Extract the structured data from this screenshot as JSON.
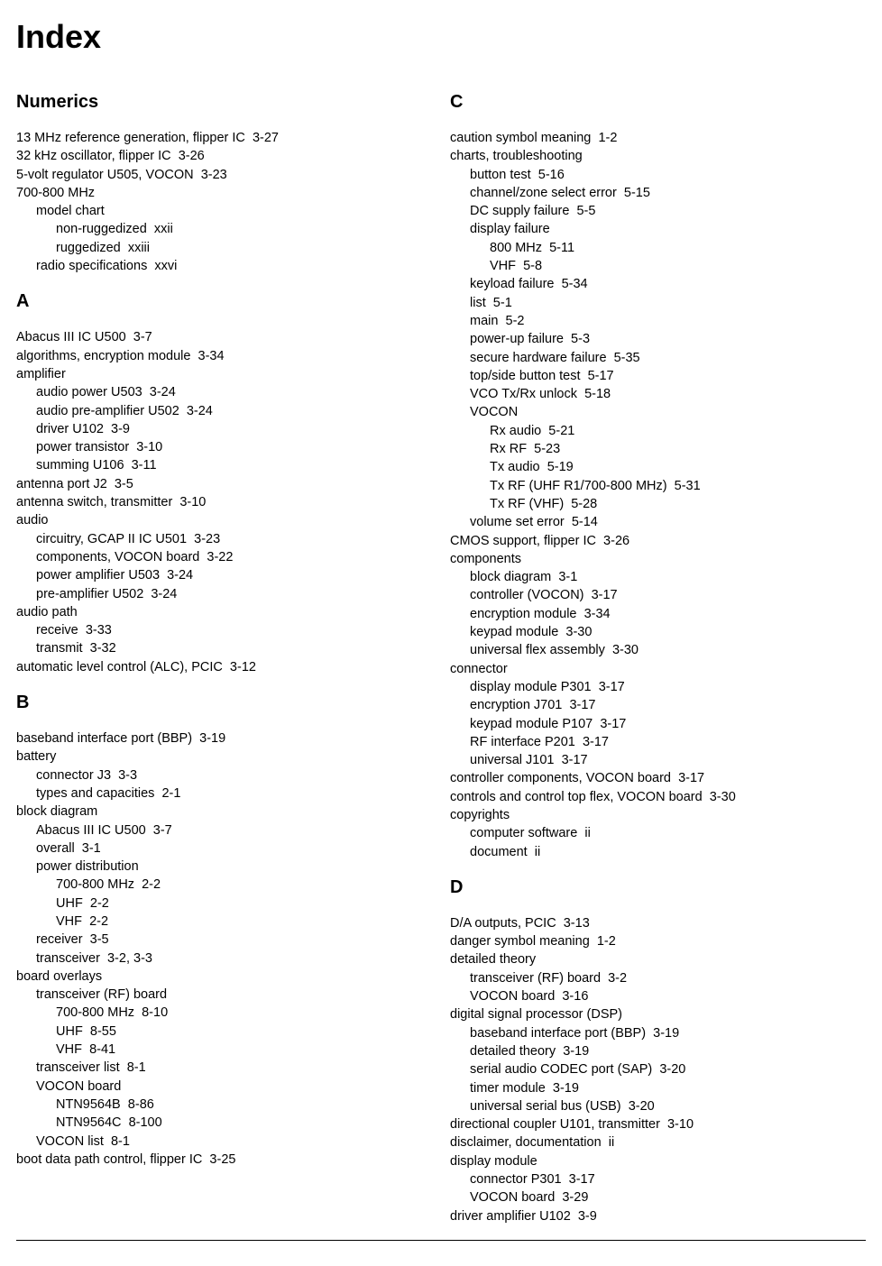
{
  "title": "Index",
  "left": {
    "sections": [
      {
        "heading": "Numerics",
        "entries": [
          {
            "lvl": 0,
            "text": "13 MHz reference generation, flipper IC",
            "ref": "3-27"
          },
          {
            "lvl": 0,
            "text": "32 kHz oscillator, flipper IC",
            "ref": "3-26"
          },
          {
            "lvl": 0,
            "text": "5-volt regulator U505, VOCON",
            "ref": "3-23"
          },
          {
            "lvl": 0,
            "text": "700-800 MHz",
            "ref": ""
          },
          {
            "lvl": 1,
            "text": "model chart",
            "ref": ""
          },
          {
            "lvl": 2,
            "text": "non-ruggedized",
            "ref": "xxii"
          },
          {
            "lvl": 2,
            "text": "ruggedized",
            "ref": "xxiii"
          },
          {
            "lvl": 1,
            "text": "radio specifications",
            "ref": "xxvi"
          }
        ]
      },
      {
        "heading": "A",
        "entries": [
          {
            "lvl": 0,
            "text": "Abacus III IC U500",
            "ref": "3-7"
          },
          {
            "lvl": 0,
            "text": "algorithms, encryption module",
            "ref": "3-34"
          },
          {
            "lvl": 0,
            "text": "amplifier",
            "ref": ""
          },
          {
            "lvl": 1,
            "text": "audio power U503",
            "ref": "3-24"
          },
          {
            "lvl": 1,
            "text": "audio pre-amplifier U502",
            "ref": "3-24"
          },
          {
            "lvl": 1,
            "text": "driver U102",
            "ref": "3-9"
          },
          {
            "lvl": 1,
            "text": "power transistor",
            "ref": "3-10"
          },
          {
            "lvl": 1,
            "text": "summing U106",
            "ref": "3-11"
          },
          {
            "lvl": 0,
            "text": "antenna port J2",
            "ref": "3-5"
          },
          {
            "lvl": 0,
            "text": "antenna switch, transmitter",
            "ref": "3-10"
          },
          {
            "lvl": 0,
            "text": "audio",
            "ref": ""
          },
          {
            "lvl": 1,
            "text": "circuitry, GCAP II IC U501",
            "ref": "3-23"
          },
          {
            "lvl": 1,
            "text": "components, VOCON board",
            "ref": "3-22"
          },
          {
            "lvl": 1,
            "text": "power amplifier U503",
            "ref": "3-24"
          },
          {
            "lvl": 1,
            "text": "pre-amplifier U502",
            "ref": "3-24"
          },
          {
            "lvl": 0,
            "text": "audio path",
            "ref": ""
          },
          {
            "lvl": 1,
            "text": "receive",
            "ref": "3-33"
          },
          {
            "lvl": 1,
            "text": "transmit",
            "ref": "3-32"
          },
          {
            "lvl": 0,
            "text": "automatic level control (ALC), PCIC",
            "ref": "3-12"
          }
        ]
      },
      {
        "heading": "B",
        "entries": [
          {
            "lvl": 0,
            "text": "baseband interface port (BBP)",
            "ref": "3-19"
          },
          {
            "lvl": 0,
            "text": "battery",
            "ref": ""
          },
          {
            "lvl": 1,
            "text": "connector J3",
            "ref": "3-3"
          },
          {
            "lvl": 1,
            "text": "types and capacities",
            "ref": "2-1"
          },
          {
            "lvl": 0,
            "text": "block diagram",
            "ref": ""
          },
          {
            "lvl": 1,
            "text": "Abacus III IC U500",
            "ref": "3-7"
          },
          {
            "lvl": 1,
            "text": "overall",
            "ref": "3-1"
          },
          {
            "lvl": 1,
            "text": "power distribution",
            "ref": ""
          },
          {
            "lvl": 2,
            "text": "700-800 MHz",
            "ref": "2-2"
          },
          {
            "lvl": 2,
            "text": "UHF",
            "ref": "2-2"
          },
          {
            "lvl": 2,
            "text": "VHF",
            "ref": "2-2"
          },
          {
            "lvl": 1,
            "text": "receiver",
            "ref": "3-5"
          },
          {
            "lvl": 1,
            "text": "transceiver",
            "ref": "3-2, 3-3"
          },
          {
            "lvl": 0,
            "text": "board overlays",
            "ref": ""
          },
          {
            "lvl": 1,
            "text": "transceiver (RF) board",
            "ref": ""
          },
          {
            "lvl": 2,
            "text": "700-800 MHz",
            "ref": "8-10"
          },
          {
            "lvl": 2,
            "text": "UHF",
            "ref": "8-55"
          },
          {
            "lvl": 2,
            "text": "VHF",
            "ref": "8-41"
          },
          {
            "lvl": 1,
            "text": "transceiver list",
            "ref": "8-1"
          },
          {
            "lvl": 1,
            "text": "VOCON board",
            "ref": ""
          },
          {
            "lvl": 2,
            "text": "NTN9564B",
            "ref": "8-86"
          },
          {
            "lvl": 2,
            "text": "NTN9564C",
            "ref": "8-100"
          },
          {
            "lvl": 1,
            "text": "VOCON list",
            "ref": "8-1"
          },
          {
            "lvl": 0,
            "text": "boot data path control, flipper IC",
            "ref": "3-25"
          }
        ]
      }
    ]
  },
  "right": {
    "sections": [
      {
        "heading": "C",
        "entries": [
          {
            "lvl": 0,
            "text": "caution symbol meaning",
            "ref": "1-2"
          },
          {
            "lvl": 0,
            "text": "charts, troubleshooting",
            "ref": ""
          },
          {
            "lvl": 1,
            "text": "button test",
            "ref": "5-16"
          },
          {
            "lvl": 1,
            "text": "channel/zone select error",
            "ref": "5-15"
          },
          {
            "lvl": 1,
            "text": "DC supply failure",
            "ref": "5-5"
          },
          {
            "lvl": 1,
            "text": "display failure",
            "ref": ""
          },
          {
            "lvl": 2,
            "text": "800 MHz",
            "ref": "5-11"
          },
          {
            "lvl": 2,
            "text": "VHF",
            "ref": "5-8"
          },
          {
            "lvl": 1,
            "text": "keyload failure",
            "ref": "5-34"
          },
          {
            "lvl": 1,
            "text": "list",
            "ref": "5-1"
          },
          {
            "lvl": 1,
            "text": "main",
            "ref": "5-2"
          },
          {
            "lvl": 1,
            "text": "power-up failure",
            "ref": "5-3"
          },
          {
            "lvl": 1,
            "text": "secure hardware failure",
            "ref": "5-35"
          },
          {
            "lvl": 1,
            "text": "top/side button test",
            "ref": "5-17"
          },
          {
            "lvl": 1,
            "text": "VCO Tx/Rx unlock",
            "ref": "5-18"
          },
          {
            "lvl": 1,
            "text": "VOCON",
            "ref": ""
          },
          {
            "lvl": 2,
            "text": "Rx audio",
            "ref": "5-21"
          },
          {
            "lvl": 2,
            "text": "Rx RF",
            "ref": "5-23"
          },
          {
            "lvl": 2,
            "text": "Tx audio",
            "ref": "5-19"
          },
          {
            "lvl": 2,
            "text": "Tx RF (UHF R1/700-800 MHz)",
            "ref": "5-31"
          },
          {
            "lvl": 2,
            "text": "Tx RF (VHF)",
            "ref": "5-28"
          },
          {
            "lvl": 1,
            "text": "volume set error",
            "ref": "5-14"
          },
          {
            "lvl": 0,
            "text": "CMOS support, flipper IC",
            "ref": "3-26"
          },
          {
            "lvl": 0,
            "text": "components",
            "ref": ""
          },
          {
            "lvl": 1,
            "text": "block diagram",
            "ref": "3-1"
          },
          {
            "lvl": 1,
            "text": "controller (VOCON)",
            "ref": "3-17"
          },
          {
            "lvl": 1,
            "text": "encryption module",
            "ref": "3-34"
          },
          {
            "lvl": 1,
            "text": "keypad module",
            "ref": "3-30"
          },
          {
            "lvl": 1,
            "text": "universal flex assembly",
            "ref": "3-30"
          },
          {
            "lvl": 0,
            "text": "connector",
            "ref": ""
          },
          {
            "lvl": 1,
            "text": "display module P301",
            "ref": "3-17"
          },
          {
            "lvl": 1,
            "text": "encryption J701",
            "ref": "3-17"
          },
          {
            "lvl": 1,
            "text": "keypad module P107",
            "ref": "3-17"
          },
          {
            "lvl": 1,
            "text": "RF interface P201",
            "ref": "3-17"
          },
          {
            "lvl": 1,
            "text": "universal J101",
            "ref": "3-17"
          },
          {
            "lvl": 0,
            "text": "controller components, VOCON board",
            "ref": "3-17"
          },
          {
            "lvl": 0,
            "text": "controls and control top flex, VOCON board",
            "ref": "3-30"
          },
          {
            "lvl": 0,
            "text": "copyrights",
            "ref": ""
          },
          {
            "lvl": 1,
            "text": "computer software",
            "ref": "ii"
          },
          {
            "lvl": 1,
            "text": "document",
            "ref": "ii"
          }
        ]
      },
      {
        "heading": "D",
        "entries": [
          {
            "lvl": 0,
            "text": "D/A outputs, PCIC",
            "ref": "3-13"
          },
          {
            "lvl": 0,
            "text": "danger symbol meaning",
            "ref": "1-2"
          },
          {
            "lvl": 0,
            "text": "detailed theory",
            "ref": ""
          },
          {
            "lvl": 1,
            "text": "transceiver (RF) board",
            "ref": "3-2"
          },
          {
            "lvl": 1,
            "text": "VOCON board",
            "ref": "3-16"
          },
          {
            "lvl": 0,
            "text": "digital signal processor (DSP)",
            "ref": ""
          },
          {
            "lvl": 1,
            "text": "baseband interface port (BBP)",
            "ref": "3-19"
          },
          {
            "lvl": 1,
            "text": "detailed theory",
            "ref": "3-19"
          },
          {
            "lvl": 1,
            "text": "serial audio CODEC port (SAP)",
            "ref": "3-20"
          },
          {
            "lvl": 1,
            "text": "timer module",
            "ref": "3-19"
          },
          {
            "lvl": 1,
            "text": "universal serial bus (USB)",
            "ref": "3-20"
          },
          {
            "lvl": 0,
            "text": "directional coupler U101, transmitter",
            "ref": "3-10"
          },
          {
            "lvl": 0,
            "text": "disclaimer, documentation",
            "ref": "ii"
          },
          {
            "lvl": 0,
            "text": "display module",
            "ref": ""
          },
          {
            "lvl": 1,
            "text": "connector P301",
            "ref": "3-17"
          },
          {
            "lvl": 1,
            "text": "VOCON board",
            "ref": "3-29"
          },
          {
            "lvl": 0,
            "text": "driver amplifier U102",
            "ref": "3-9"
          }
        ]
      }
    ]
  }
}
